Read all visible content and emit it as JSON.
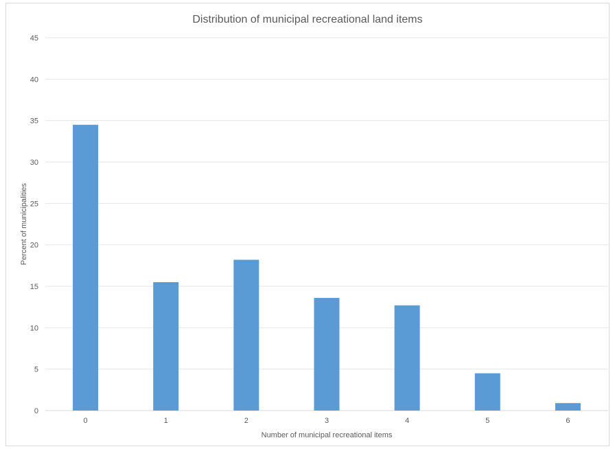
{
  "chart_data": {
    "type": "bar",
    "title": "Distribution of municipal recreational land items",
    "xlabel": "Number of municipal recreational items",
    "ylabel": "Percent of municipalities",
    "categories": [
      "0",
      "1",
      "2",
      "3",
      "4",
      "5",
      "6"
    ],
    "values": [
      34.5,
      15.5,
      18.2,
      13.6,
      12.7,
      4.5,
      0.9
    ],
    "ylim": [
      0,
      45
    ],
    "yticks": [
      "0",
      "5",
      "10",
      "15",
      "20",
      "25",
      "30",
      "35",
      "40",
      "45"
    ],
    "grid": true,
    "bar_color": "#5b9bd5",
    "gridline_color": "#e6e6e6",
    "axis_line_color": "#d9d9d9"
  }
}
